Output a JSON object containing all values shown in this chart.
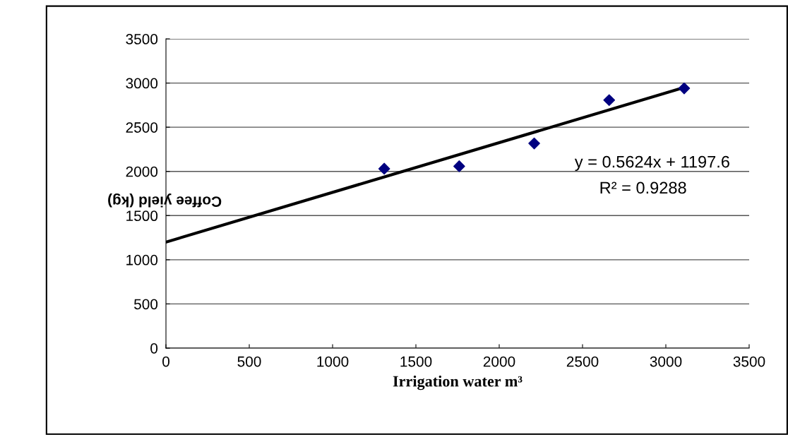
{
  "chart_data": {
    "type": "scatter",
    "xlabel": "Irrigation water m³",
    "ylabel": "Coffee yield (kg)",
    "series": [
      {
        "color": "#000080",
        "marker": "diamond",
        "x": [
          1310,
          1760,
          2210,
          2660,
          3110
        ],
        "values": [
          2030,
          2058,
          2317,
          2807,
          2940
        ]
      },
      {
        "type": "line",
        "color": "#000000",
        "marker": "none",
        "line_style": "solid",
        "x": [
          0,
          3110
        ],
        "values": [
          1200,
          2950
        ]
      }
    ],
    "annotations": [
      "y = 0.5624x + 1197.6",
      "R² = 0.9288"
    ],
    "xlim": [
      0,
      3500
    ],
    "xticks": [
      0,
      500,
      1000,
      1500,
      2000,
      2500,
      3000,
      3500
    ],
    "ylim": [
      0,
      3500
    ],
    "yticks": [
      0,
      500,
      1000,
      1500,
      2000,
      2500,
      3000,
      3500
    ],
    "grid": "y",
    "legend": false
  }
}
